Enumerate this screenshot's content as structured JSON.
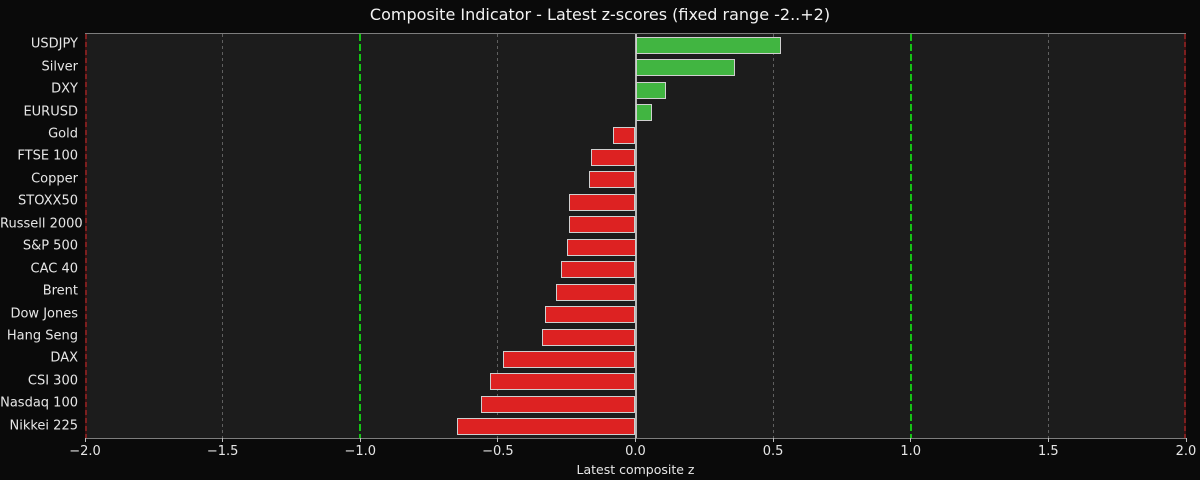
{
  "chart_data": {
    "type": "bar",
    "orientation": "horizontal",
    "title": "Composite Indicator - Latest z-scores (fixed range -2..+2)",
    "xlabel": "Latest composite z",
    "categories": [
      "USDJPY",
      "Silver",
      "DXY",
      "EURUSD",
      "Gold",
      "FTSE 100",
      "Copper",
      "STOXX50",
      "Russell 2000",
      "S&P 500",
      "CAC 40",
      "Brent",
      "Dow Jones",
      "Hang Seng",
      "DAX",
      "CSI 300",
      "Nasdaq 100",
      "Nikkei 225"
    ],
    "values": [
      0.53,
      0.36,
      0.11,
      0.06,
      -0.08,
      -0.16,
      -0.17,
      -0.24,
      -0.24,
      -0.25,
      -0.27,
      -0.29,
      -0.33,
      -0.34,
      -0.48,
      -0.53,
      -0.56,
      -0.65
    ],
    "xlim": [
      -2.0,
      2.0
    ],
    "xticks": [
      -2.0,
      -1.5,
      -1.0,
      -0.5,
      0.0,
      0.5,
      1.0,
      1.5,
      2.0
    ],
    "xtick_labels": [
      "−2.0",
      "−1.5",
      "−1.0",
      "−0.5",
      "0.0",
      "0.5",
      "1.0",
      "1.5",
      "2.0"
    ],
    "guides": {
      "zero_line": 0.0,
      "green_dashed": [
        -1.0,
        1.0
      ],
      "gray_dashed": [
        -1.5,
        -0.5,
        0.5,
        1.5
      ],
      "red_bounds": [
        -2.0,
        2.0
      ]
    },
    "grid": "vertical-dashed",
    "legend": "none",
    "colors": {
      "positive_bar": "#41b541",
      "negative_bar": "#dd2222",
      "bar_edge": "#cfcfcf",
      "guide_green": "#15c315",
      "bound_red": "#7d1f1f",
      "gridline_gray": "#5f5f5f",
      "zero_line": "#b8b8b8",
      "plot_background": "#1c1c1c",
      "figure_background": "#0a0a0a",
      "text": "#e6e6e6"
    }
  }
}
